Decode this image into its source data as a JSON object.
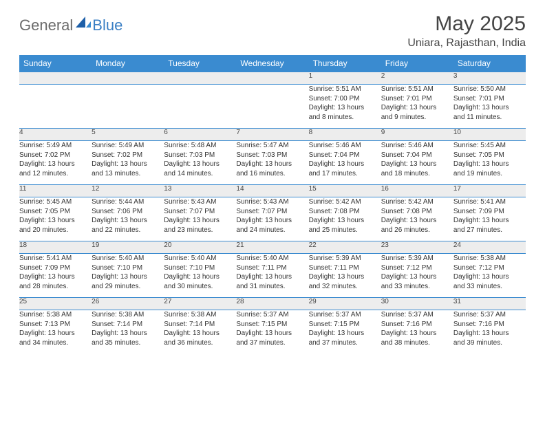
{
  "logo": {
    "general": "General",
    "blue": "Blue"
  },
  "title": "May 2025",
  "location": "Uniara, Rajasthan, India",
  "colors": {
    "header_bg": "#3a8bd0",
    "header_text": "#ffffff",
    "daynum_bg": "#ededed",
    "border": "#3a8bd0",
    "logo_gray": "#6b6b6b",
    "logo_blue": "#3a7fc4"
  },
  "weekdays": [
    "Sunday",
    "Monday",
    "Tuesday",
    "Wednesday",
    "Thursday",
    "Friday",
    "Saturday"
  ],
  "weeks": [
    {
      "nums": [
        "",
        "",
        "",
        "",
        "1",
        "2",
        "3"
      ],
      "cells": [
        null,
        null,
        null,
        null,
        {
          "sr": "Sunrise: 5:51 AM",
          "ss": "Sunset: 7:00 PM",
          "d1": "Daylight: 13 hours",
          "d2": "and 8 minutes."
        },
        {
          "sr": "Sunrise: 5:51 AM",
          "ss": "Sunset: 7:01 PM",
          "d1": "Daylight: 13 hours",
          "d2": "and 9 minutes."
        },
        {
          "sr": "Sunrise: 5:50 AM",
          "ss": "Sunset: 7:01 PM",
          "d1": "Daylight: 13 hours",
          "d2": "and 11 minutes."
        }
      ]
    },
    {
      "nums": [
        "4",
        "5",
        "6",
        "7",
        "8",
        "9",
        "10"
      ],
      "cells": [
        {
          "sr": "Sunrise: 5:49 AM",
          "ss": "Sunset: 7:02 PM",
          "d1": "Daylight: 13 hours",
          "d2": "and 12 minutes."
        },
        {
          "sr": "Sunrise: 5:49 AM",
          "ss": "Sunset: 7:02 PM",
          "d1": "Daylight: 13 hours",
          "d2": "and 13 minutes."
        },
        {
          "sr": "Sunrise: 5:48 AM",
          "ss": "Sunset: 7:03 PM",
          "d1": "Daylight: 13 hours",
          "d2": "and 14 minutes."
        },
        {
          "sr": "Sunrise: 5:47 AM",
          "ss": "Sunset: 7:03 PM",
          "d1": "Daylight: 13 hours",
          "d2": "and 16 minutes."
        },
        {
          "sr": "Sunrise: 5:46 AM",
          "ss": "Sunset: 7:04 PM",
          "d1": "Daylight: 13 hours",
          "d2": "and 17 minutes."
        },
        {
          "sr": "Sunrise: 5:46 AM",
          "ss": "Sunset: 7:04 PM",
          "d1": "Daylight: 13 hours",
          "d2": "and 18 minutes."
        },
        {
          "sr": "Sunrise: 5:45 AM",
          "ss": "Sunset: 7:05 PM",
          "d1": "Daylight: 13 hours",
          "d2": "and 19 minutes."
        }
      ]
    },
    {
      "nums": [
        "11",
        "12",
        "13",
        "14",
        "15",
        "16",
        "17"
      ],
      "cells": [
        {
          "sr": "Sunrise: 5:45 AM",
          "ss": "Sunset: 7:05 PM",
          "d1": "Daylight: 13 hours",
          "d2": "and 20 minutes."
        },
        {
          "sr": "Sunrise: 5:44 AM",
          "ss": "Sunset: 7:06 PM",
          "d1": "Daylight: 13 hours",
          "d2": "and 22 minutes."
        },
        {
          "sr": "Sunrise: 5:43 AM",
          "ss": "Sunset: 7:07 PM",
          "d1": "Daylight: 13 hours",
          "d2": "and 23 minutes."
        },
        {
          "sr": "Sunrise: 5:43 AM",
          "ss": "Sunset: 7:07 PM",
          "d1": "Daylight: 13 hours",
          "d2": "and 24 minutes."
        },
        {
          "sr": "Sunrise: 5:42 AM",
          "ss": "Sunset: 7:08 PM",
          "d1": "Daylight: 13 hours",
          "d2": "and 25 minutes."
        },
        {
          "sr": "Sunrise: 5:42 AM",
          "ss": "Sunset: 7:08 PM",
          "d1": "Daylight: 13 hours",
          "d2": "and 26 minutes."
        },
        {
          "sr": "Sunrise: 5:41 AM",
          "ss": "Sunset: 7:09 PM",
          "d1": "Daylight: 13 hours",
          "d2": "and 27 minutes."
        }
      ]
    },
    {
      "nums": [
        "18",
        "19",
        "20",
        "21",
        "22",
        "23",
        "24"
      ],
      "cells": [
        {
          "sr": "Sunrise: 5:41 AM",
          "ss": "Sunset: 7:09 PM",
          "d1": "Daylight: 13 hours",
          "d2": "and 28 minutes."
        },
        {
          "sr": "Sunrise: 5:40 AM",
          "ss": "Sunset: 7:10 PM",
          "d1": "Daylight: 13 hours",
          "d2": "and 29 minutes."
        },
        {
          "sr": "Sunrise: 5:40 AM",
          "ss": "Sunset: 7:10 PM",
          "d1": "Daylight: 13 hours",
          "d2": "and 30 minutes."
        },
        {
          "sr": "Sunrise: 5:40 AM",
          "ss": "Sunset: 7:11 PM",
          "d1": "Daylight: 13 hours",
          "d2": "and 31 minutes."
        },
        {
          "sr": "Sunrise: 5:39 AM",
          "ss": "Sunset: 7:11 PM",
          "d1": "Daylight: 13 hours",
          "d2": "and 32 minutes."
        },
        {
          "sr": "Sunrise: 5:39 AM",
          "ss": "Sunset: 7:12 PM",
          "d1": "Daylight: 13 hours",
          "d2": "and 33 minutes."
        },
        {
          "sr": "Sunrise: 5:38 AM",
          "ss": "Sunset: 7:12 PM",
          "d1": "Daylight: 13 hours",
          "d2": "and 33 minutes."
        }
      ]
    },
    {
      "nums": [
        "25",
        "26",
        "27",
        "28",
        "29",
        "30",
        "31"
      ],
      "cells": [
        {
          "sr": "Sunrise: 5:38 AM",
          "ss": "Sunset: 7:13 PM",
          "d1": "Daylight: 13 hours",
          "d2": "and 34 minutes."
        },
        {
          "sr": "Sunrise: 5:38 AM",
          "ss": "Sunset: 7:14 PM",
          "d1": "Daylight: 13 hours",
          "d2": "and 35 minutes."
        },
        {
          "sr": "Sunrise: 5:38 AM",
          "ss": "Sunset: 7:14 PM",
          "d1": "Daylight: 13 hours",
          "d2": "and 36 minutes."
        },
        {
          "sr": "Sunrise: 5:37 AM",
          "ss": "Sunset: 7:15 PM",
          "d1": "Daylight: 13 hours",
          "d2": "and 37 minutes."
        },
        {
          "sr": "Sunrise: 5:37 AM",
          "ss": "Sunset: 7:15 PM",
          "d1": "Daylight: 13 hours",
          "d2": "and 37 minutes."
        },
        {
          "sr": "Sunrise: 5:37 AM",
          "ss": "Sunset: 7:16 PM",
          "d1": "Daylight: 13 hours",
          "d2": "and 38 minutes."
        },
        {
          "sr": "Sunrise: 5:37 AM",
          "ss": "Sunset: 7:16 PM",
          "d1": "Daylight: 13 hours",
          "d2": "and 39 minutes."
        }
      ]
    }
  ]
}
